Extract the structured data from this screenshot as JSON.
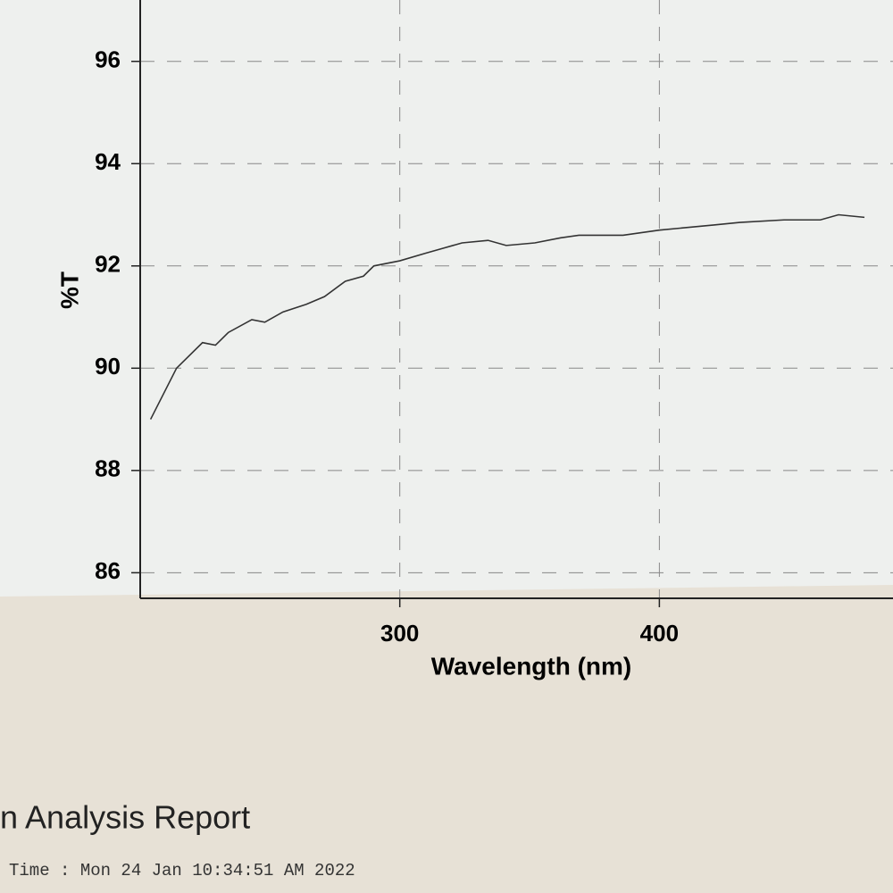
{
  "chart_data": {
    "type": "line",
    "x_label": "Wavelength (nm)",
    "y_label": "%T",
    "series": [
      {
        "color": "#333333",
        "x": [
          204,
          214,
          224,
          229,
          234,
          243,
          248,
          255,
          264,
          271,
          279,
          286,
          290,
          300,
          310,
          317,
          324,
          334,
          341,
          352,
          362,
          369,
          386,
          400,
          421,
          431,
          448,
          462,
          469,
          479
        ],
        "values": [
          89.0,
          90.0,
          90.5,
          90.45,
          90.7,
          90.95,
          90.9,
          91.1,
          91.25,
          91.4,
          91.7,
          91.8,
          92.0,
          92.1,
          92.25,
          92.35,
          92.45,
          92.5,
          92.4,
          92.45,
          92.55,
          92.6,
          92.6,
          92.7,
          92.8,
          92.85,
          92.9,
          92.9,
          93.0,
          92.95
        ]
      }
    ],
    "xlim": [
      200,
      490
    ],
    "xticks": [
      300,
      400
    ],
    "ylim": [
      85.5,
      97.2
    ],
    "yticks": [
      86,
      88,
      90,
      92,
      94,
      96
    ],
    "grid": true
  },
  "footer": {
    "title": "n Analysis Report",
    "time": "Time : Mon 24 Jan 10:34:51 AM 2022"
  }
}
